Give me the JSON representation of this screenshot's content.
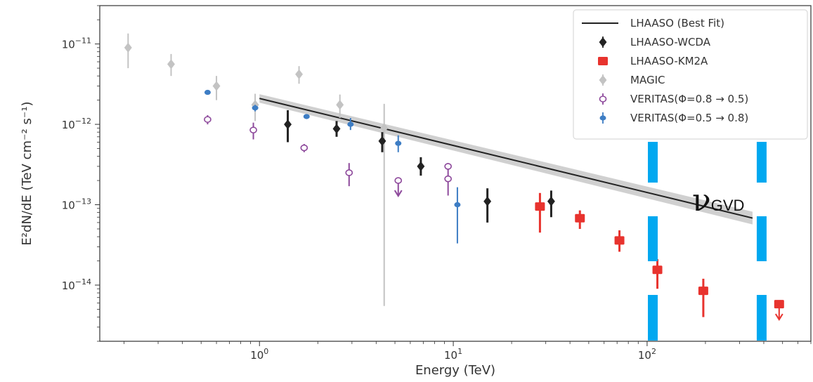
{
  "chart_data": {
    "type": "scatter",
    "xlabel": "Energy (TeV)",
    "ylabel": "E²dN/dE (TeV cm⁻² s⁻¹)",
    "xscale": "log",
    "yscale": "log",
    "xlim": [
      0.15,
      700
    ],
    "ylim": [
      2e-15,
      3e-11
    ],
    "x_ticks": [
      {
        "value": 1,
        "base": "10",
        "exp": "0"
      },
      {
        "value": 10,
        "base": "10",
        "exp": "1"
      },
      {
        "value": 100,
        "base": "10",
        "exp": "2"
      }
    ],
    "y_ticks": [
      {
        "value": 1e-14,
        "base": "10",
        "exp": "−14"
      },
      {
        "value": 1e-13,
        "base": "10",
        "exp": "−13"
      },
      {
        "value": 1e-12,
        "base": "10",
        "exp": "−12"
      },
      {
        "value": 1e-11,
        "base": "10",
        "exp": "−11"
      }
    ],
    "legend_position": "top-right",
    "best_fit": {
      "name": "LHAASO (Best Fit)",
      "color": "#222222",
      "band_color": "#c8c8c8",
      "x_range": [
        1,
        350
      ],
      "y_at_1TeV": 2.1e-12,
      "index": 2.0
    },
    "series": [
      {
        "name": "LHAASO-WCDA",
        "color": "#222222",
        "marker": "diamond",
        "points": [
          {
            "x": 1.4,
            "y": 1e-12,
            "lo": 6e-13,
            "hi": 1.5e-12
          },
          {
            "x": 2.5,
            "y": 8.8e-13,
            "lo": 7e-13,
            "hi": 1.1e-12
          },
          {
            "x": 4.3,
            "y": 6.2e-13,
            "lo": 4.5e-13,
            "hi": 8e-13
          },
          {
            "x": 6.8,
            "y": 3e-13,
            "lo": 2.3e-13,
            "hi": 3.9e-13
          },
          {
            "x": 15,
            "y": 1.1e-13,
            "lo": 6e-14,
            "hi": 1.6e-13
          },
          {
            "x": 32,
            "y": 1.1e-13,
            "lo": 7e-14,
            "hi": 1.5e-13
          }
        ]
      },
      {
        "name": "LHAASO-KM2A",
        "color": "#e8332e",
        "marker": "square",
        "points": [
          {
            "x": 28,
            "y": 9.5e-14,
            "lo": 4.5e-14,
            "hi": 1.4e-13
          },
          {
            "x": 45,
            "y": 6.8e-14,
            "lo": 5e-14,
            "hi": 8.5e-14
          },
          {
            "x": 72,
            "y": 3.6e-14,
            "lo": 2.6e-14,
            "hi": 4.8e-14
          },
          {
            "x": 113,
            "y": 1.55e-14,
            "lo": 9e-15,
            "hi": 2.1e-14
          },
          {
            "x": 195,
            "y": 8.5e-15,
            "lo": 4e-15,
            "hi": 1.2e-14
          },
          {
            "x": 480,
            "y": 5.8e-15,
            "upper_limit": true
          }
        ]
      },
      {
        "name": "MAGIC",
        "color": "#c3c3c3",
        "marker": "diamond",
        "points": [
          {
            "x": 0.21,
            "y": 9e-12,
            "lo": 5e-12,
            "hi": 1.35e-11
          },
          {
            "x": 0.35,
            "y": 5.6e-12,
            "lo": 4e-12,
            "hi": 7.5e-12
          },
          {
            "x": 0.6,
            "y": 3e-12,
            "lo": 2e-12,
            "hi": 4e-12
          },
          {
            "x": 0.95,
            "y": 1.75e-12,
            "lo": 1.1e-12,
            "hi": 2.4e-12
          },
          {
            "x": 1.6,
            "y": 4.2e-12,
            "lo": 3.2e-12,
            "hi": 5.3e-12
          },
          {
            "x": 2.6,
            "y": 1.75e-12,
            "lo": 1.2e-12,
            "hi": 2.35e-12
          },
          {
            "x": 4.4,
            "y": 9e-13,
            "lo": 5.5e-15,
            "hi": 1.8e-12
          }
        ]
      },
      {
        "name": "VERITAS(Φ=0.8 → 0.5)",
        "color": "#8e4a9c",
        "marker": "open-circle",
        "points": [
          {
            "x": 0.54,
            "y": 1.15e-12,
            "lo": 1e-12,
            "hi": 1.3e-12
          },
          {
            "x": 0.93,
            "y": 8.5e-13,
            "lo": 6.5e-13,
            "hi": 1.05e-12
          },
          {
            "x": 1.7,
            "y": 5.1e-13,
            "lo": 4.5e-13,
            "hi": 5.7e-13
          },
          {
            "x": 2.9,
            "y": 2.5e-13,
            "lo": 1.7e-13,
            "hi": 3.3e-13
          },
          {
            "x": 5.2,
            "y": 2e-13,
            "upper_limit": true
          },
          {
            "x": 9.4,
            "y": 3e-13,
            "lo": 2.6e-13,
            "hi": 3.3e-13
          },
          {
            "x": 9.4,
            "y": 2.1e-13,
            "lo": 1.3e-13,
            "hi": 2.6e-13
          }
        ]
      },
      {
        "name": "VERITAS(Φ=0.5 → 0.8)",
        "color": "#3d7dc4",
        "marker": "dot",
        "points": [
          {
            "x": 0.54,
            "y": 2.5e-12,
            "lo": 2.4e-12,
            "hi": 2.6e-12
          },
          {
            "x": 0.95,
            "y": 1.6e-12,
            "lo": 1.45e-12,
            "hi": 1.75e-12
          },
          {
            "x": 1.75,
            "y": 1.25e-12,
            "lo": 1.2e-12,
            "hi": 1.3e-12
          },
          {
            "x": 2.95,
            "y": 1e-12,
            "lo": 8.5e-13,
            "hi": 1.2e-12
          },
          {
            "x": 5.2,
            "y": 5.8e-13,
            "lo": 4.5e-13,
            "hi": 7.3e-13
          },
          {
            "x": 10.5,
            "y": 1e-13,
            "lo": 3.3e-14,
            "hi": 1.65e-13
          }
        ]
      }
    ],
    "annotation": {
      "text_main": "ν",
      "text_sub": "GVD",
      "color": "#00a8f0",
      "x_lines": [
        107,
        390
      ]
    }
  }
}
